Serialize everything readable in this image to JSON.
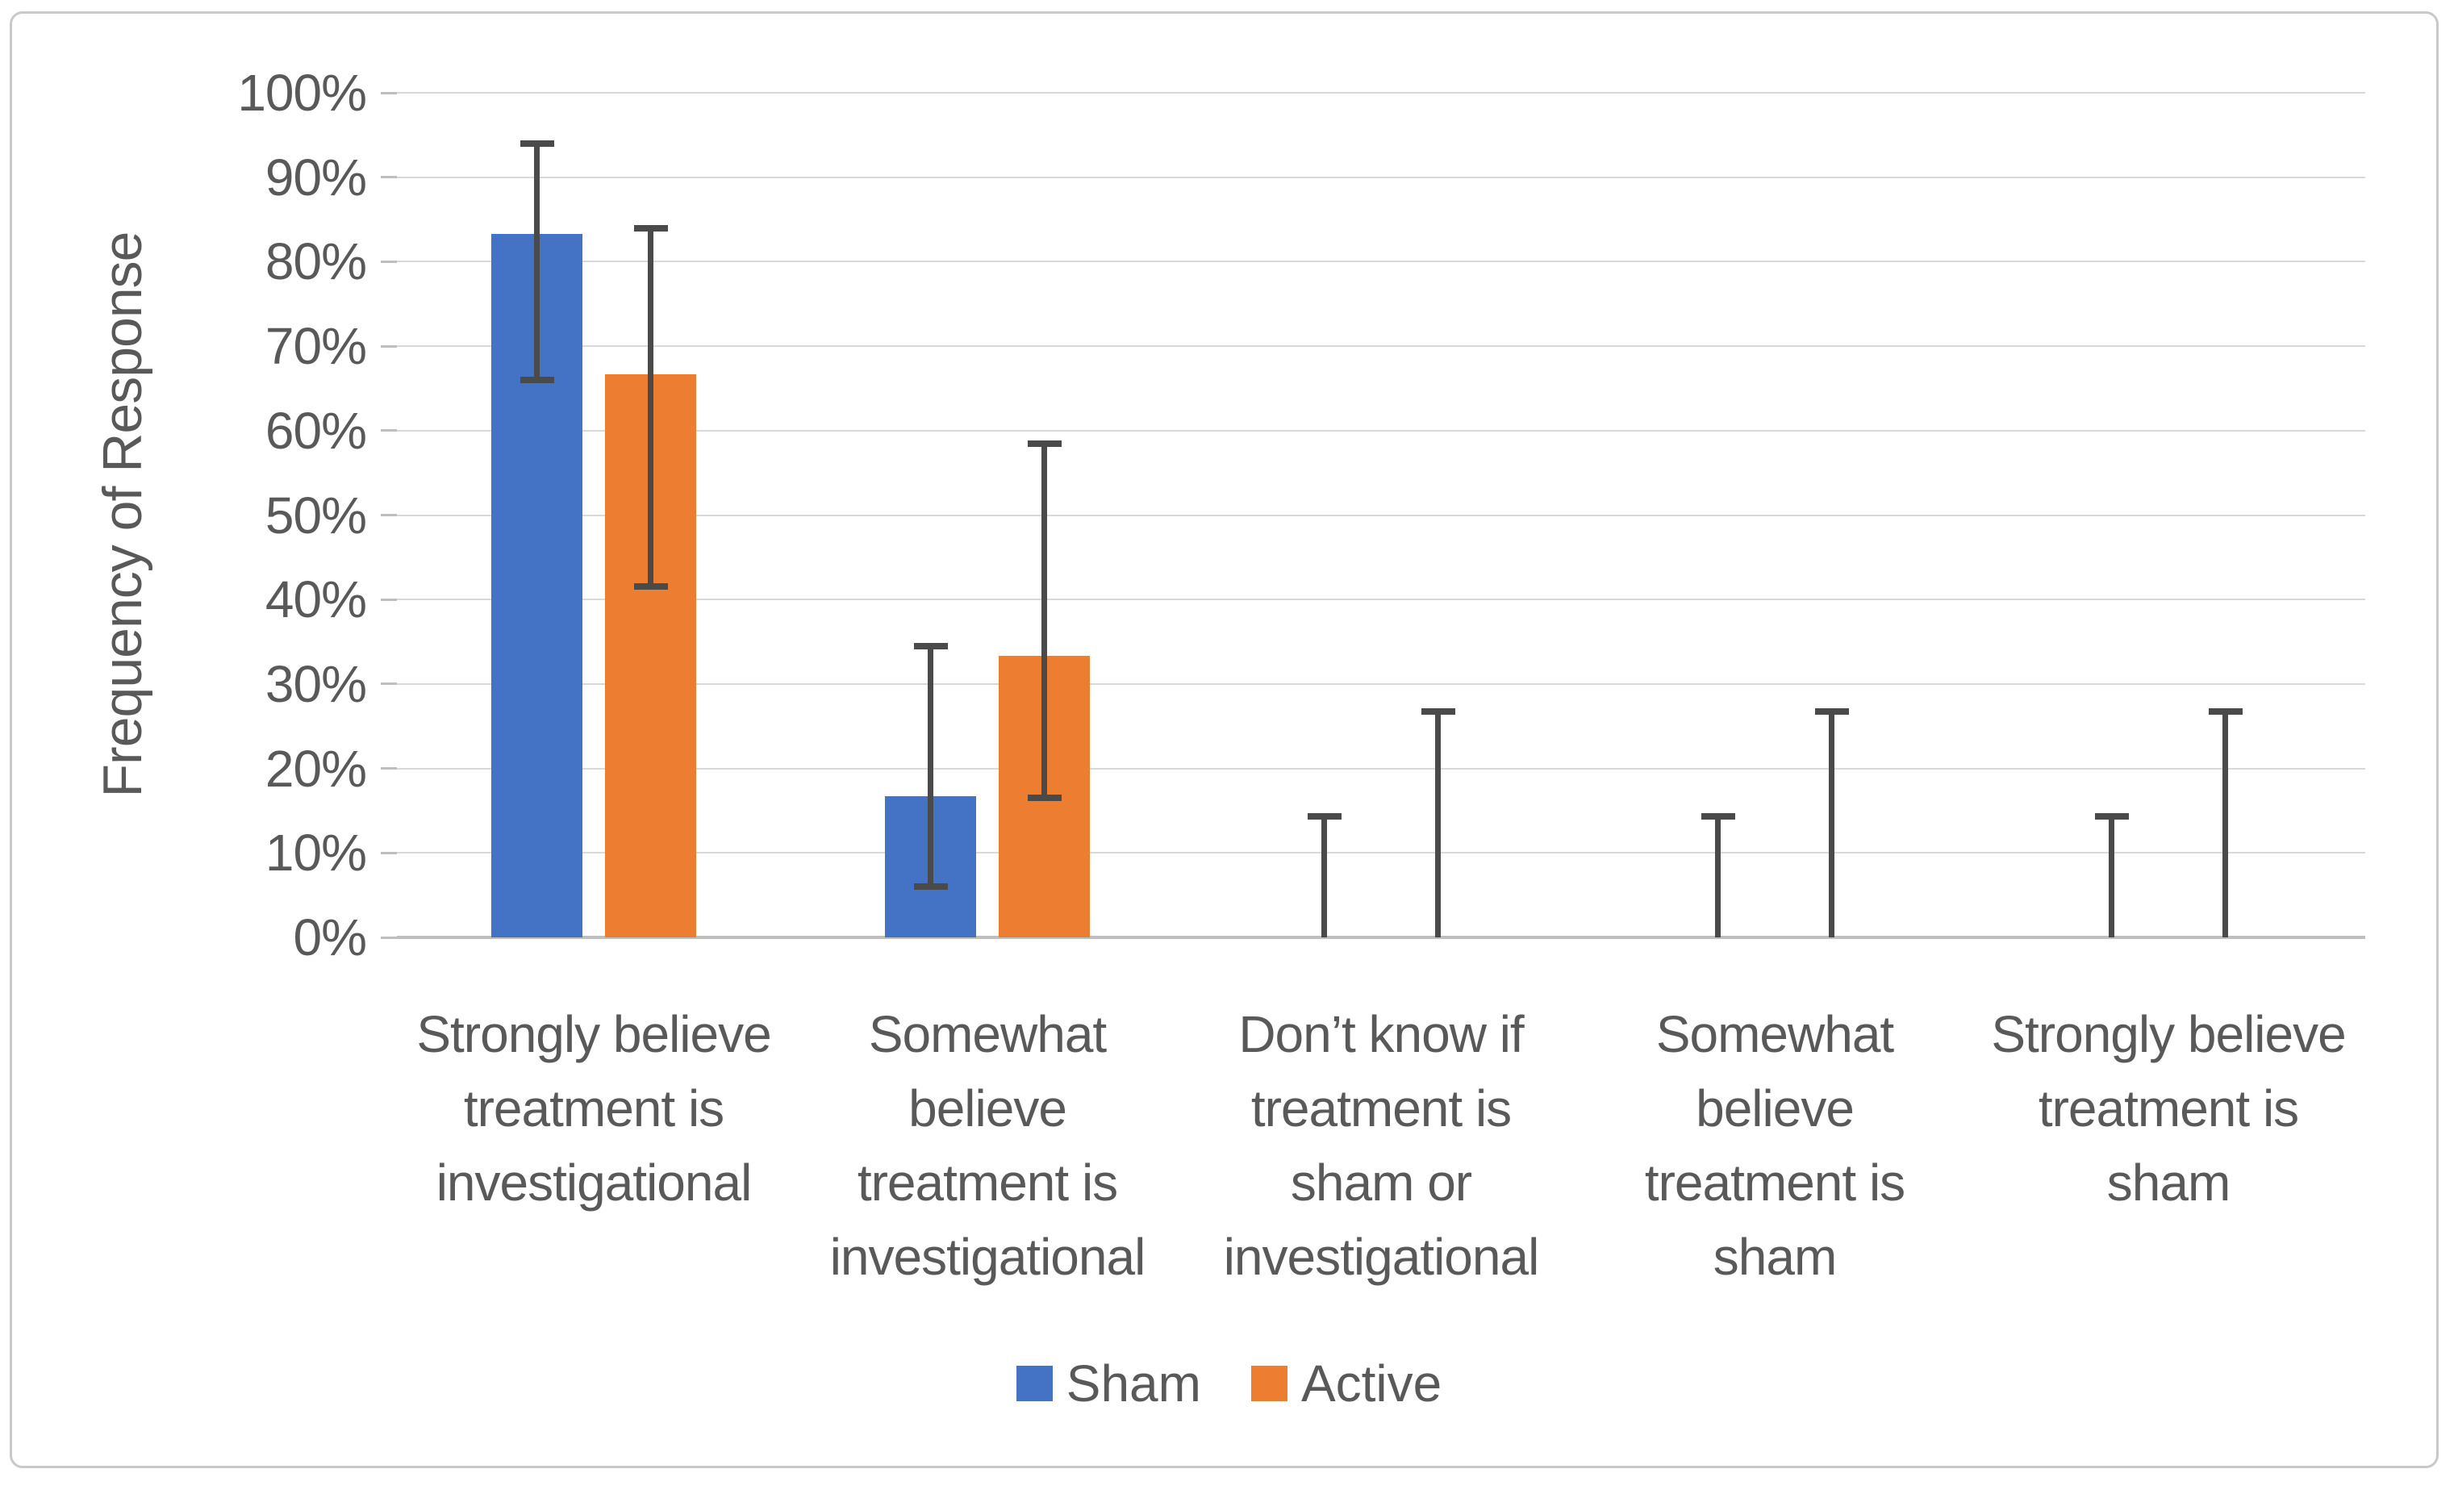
{
  "chart_data": {
    "type": "bar",
    "title": "",
    "xlabel": "",
    "ylabel": "Frequency of Response",
    "ylim": [
      0,
      100
    ],
    "ytick_step": 10,
    "ytick_labels": [
      "0%",
      "10%",
      "20%",
      "30%",
      "40%",
      "50%",
      "60%",
      "70%",
      "80%",
      "90%",
      "100%"
    ],
    "grid": true,
    "legend_position": "bottom",
    "categories": [
      "Strongly believe treatment is investigational",
      "Somewhat believe treatment is investigational",
      "Don’t know if treatment is sham or investigational",
      "Somewhat believe treatment is sham",
      "Strongly believe treatment is sham"
    ],
    "category_label_lines": [
      [
        "Strongly believe",
        "treatment is",
        "investigational"
      ],
      [
        "Somewhat",
        "believe",
        "treatment is",
        "investigational"
      ],
      [
        "Don’t know if",
        "treatment is",
        "sham or",
        "investigational"
      ],
      [
        "Somewhat",
        "believe",
        "treatment is",
        "sham"
      ],
      [
        "Strongly believe",
        "treatment is",
        "sham"
      ]
    ],
    "series": [
      {
        "name": "Sham",
        "color": "#4472C4",
        "values": [
          83.3,
          16.7,
          0,
          0,
          0
        ],
        "error_low": [
          66,
          6,
          0,
          0,
          0
        ],
        "error_high": [
          94,
          34.5,
          14.3,
          14.3,
          14.3
        ]
      },
      {
        "name": "Active",
        "color": "#ED7D31",
        "values": [
          66.7,
          33.3,
          0,
          0,
          0
        ],
        "error_low": [
          41.5,
          16.5,
          0,
          0,
          0
        ],
        "error_high": [
          84,
          58.5,
          26.7,
          26.7,
          26.7
        ]
      }
    ],
    "colors": {
      "sham": "#4472C4",
      "active": "#ED7D31",
      "error_bar": "#4a4a4a",
      "gridline": "#d9d9d9",
      "axis_line": "#bfbfbf",
      "text": "#595959",
      "frame_border": "#c9c9c9"
    }
  }
}
